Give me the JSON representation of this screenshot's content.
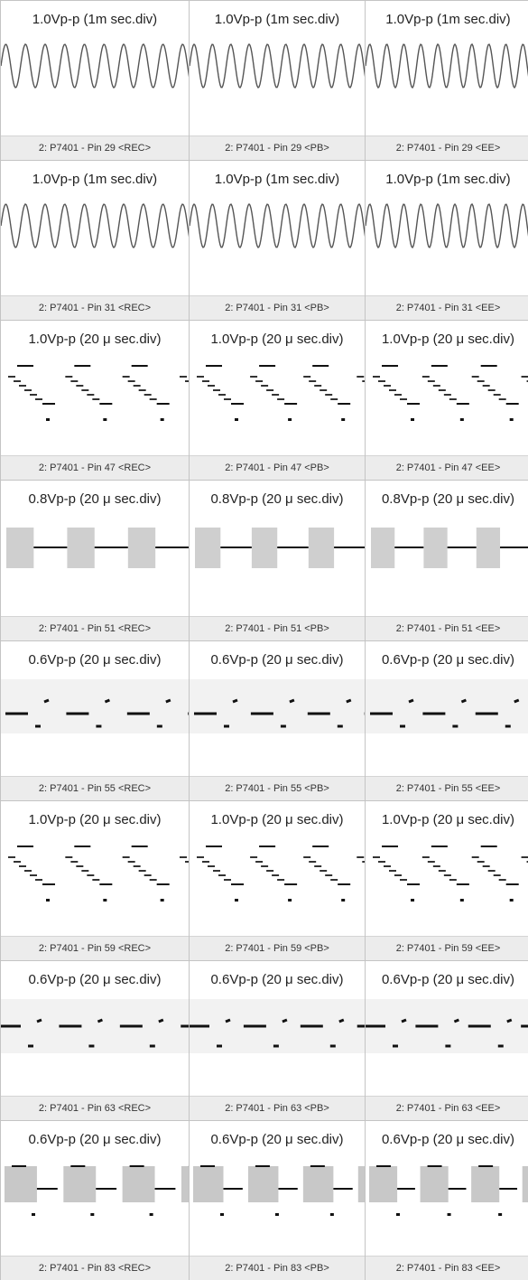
{
  "rows": [
    {
      "cells": [
        {
          "title": "1.0Vp-p (1m sec.div)",
          "caption": "2: P7401 - Pin 29 <REC>"
        },
        {
          "title": "1.0Vp-p (1m sec.div)",
          "caption": "2: P7401 - Pin 29 <PB>"
        },
        {
          "title": "1.0Vp-p (1m sec.div)",
          "caption": "2: P7401 - Pin 29 <EE>"
        }
      ]
    },
    {
      "cells": [
        {
          "title": "1.0Vp-p (1m sec.div)",
          "caption": "2: P7401 - Pin 31 <REC>"
        },
        {
          "title": "1.0Vp-p (1m sec.div)",
          "caption": "2: P7401 - Pin 31 <PB>"
        },
        {
          "title": "1.0Vp-p (1m sec.div)",
          "caption": "2: P7401 - Pin 31 <EE>"
        }
      ]
    },
    {
      "cells": [
        {
          "title": "1.0Vp-p (20 μ sec.div)",
          "caption": "2: P7401 - Pin 47 <REC>"
        },
        {
          "title": "1.0Vp-p (20 μ sec.div)",
          "caption": "2: P7401 - Pin 47 <PB>"
        },
        {
          "title": "1.0Vp-p (20 μ sec.div)",
          "caption": "2: P7401 - Pin 47 <EE>"
        }
      ]
    },
    {
      "cells": [
        {
          "title": "0.8Vp-p (20 μ sec.div)",
          "caption": "2: P7401 - Pin 51 <REC>"
        },
        {
          "title": "0.8Vp-p (20 μ sec.div)",
          "caption": "2: P7401 - Pin 51 <PB>"
        },
        {
          "title": "0.8Vp-p (20 μ sec.div)",
          "caption": "2: P7401 - Pin 51 <EE>"
        }
      ]
    },
    {
      "cells": [
        {
          "title": "0.6Vp-p (20 μ sec.div)",
          "caption": "2: P7401 - Pin 55 <REC>"
        },
        {
          "title": "0.6Vp-p (20 μ sec.div)",
          "caption": "2: P7401 - Pin 55 <PB>"
        },
        {
          "title": "0.6Vp-p (20 μ sec.div)",
          "caption": "2: P7401 - Pin 55 <EE>"
        }
      ]
    },
    {
      "cells": [
        {
          "title": "1.0Vp-p (20 μ sec.div)",
          "caption": "2: P7401 - Pin 59 <REC>"
        },
        {
          "title": "1.0Vp-p (20 μ sec.div)",
          "caption": "2: P7401 - Pin 59 <PB>"
        },
        {
          "title": "1.0Vp-p (20 μ sec.div)",
          "caption": "2: P7401 - Pin 59 <EE>"
        }
      ]
    },
    {
      "cells": [
        {
          "title": "0.6Vp-p (20 μ sec.div)",
          "caption": "2: P7401 - Pin 63 <REC>"
        },
        {
          "title": "0.6Vp-p (20 μ sec.div)",
          "caption": "2: P7401 - Pin 63 <PB>"
        },
        {
          "title": "0.6Vp-p (20 μ sec.div)",
          "caption": "2: P7401 - Pin 63 <EE>"
        }
      ]
    },
    {
      "cells": [
        {
          "title": "0.6Vp-p (20 μ sec.div)",
          "caption": "2: P7401 - Pin 83 <REC>"
        },
        {
          "title": "0.6Vp-p (20 μ sec.div)",
          "caption": "2: P7401 - Pin 83 <PB>"
        },
        {
          "title": "0.6Vp-p (20 μ sec.div)",
          "caption": "2: P7401 - Pin 83 <EE>"
        }
      ]
    }
  ]
}
